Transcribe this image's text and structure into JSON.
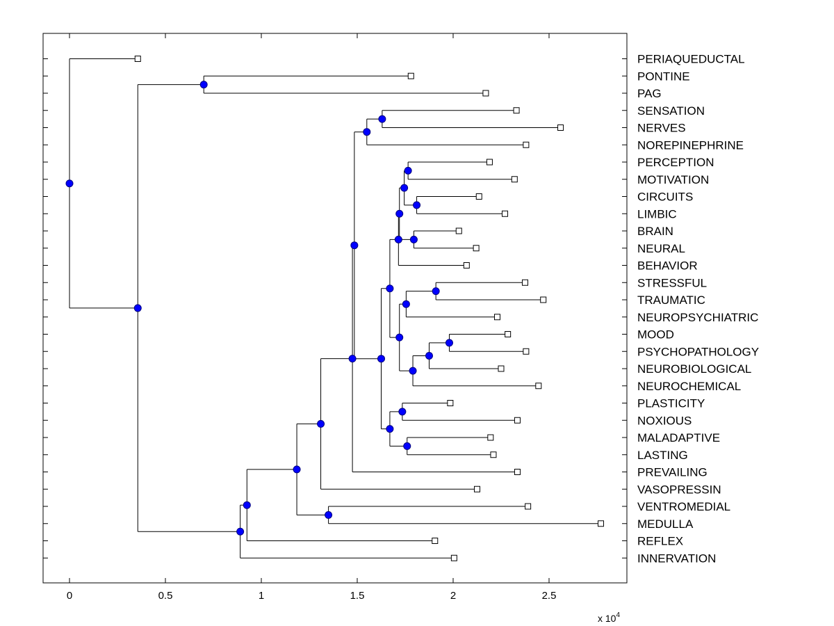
{
  "chart_data": {
    "type": "dendrogram",
    "title": "",
    "xlabel": "",
    "ylabel": "",
    "x_scale_label": "x 10",
    "x_scale_exponent": "4",
    "xlim": [
      -0.14,
      2.9
    ],
    "xticks": [
      {
        "value": 0,
        "label": "0"
      },
      {
        "value": 0.5,
        "label": "0.5"
      },
      {
        "value": 1,
        "label": "1"
      },
      {
        "value": 1.5,
        "label": "1.5"
      },
      {
        "value": 2,
        "label": "2"
      },
      {
        "value": 2.5,
        "label": "2.5"
      }
    ],
    "colors": {
      "node": "#0000ff",
      "node_edge": "#000080",
      "line": "#000000",
      "leaf_fill": "#ffffff"
    },
    "leaves": [
      {
        "id": "periaqueductal",
        "label": "PERIAQUEDUCTAL",
        "x": 0.356
      },
      {
        "id": "pontine",
        "label": "PONTINE",
        "x": 1.78
      },
      {
        "id": "pag",
        "label": "PAG",
        "x": 2.17
      },
      {
        "id": "sensation",
        "label": "SENSATION",
        "x": 2.33
      },
      {
        "id": "nerves",
        "label": "NERVES",
        "x": 2.56
      },
      {
        "id": "norepinephrine",
        "label": "NOREPINEPHRINE",
        "x": 2.38
      },
      {
        "id": "perception",
        "label": "PERCEPTION",
        "x": 2.19
      },
      {
        "id": "motivation",
        "label": "MOTIVATION",
        "x": 2.32
      },
      {
        "id": "circuits",
        "label": "CIRCUITS",
        "x": 2.135
      },
      {
        "id": "limbic",
        "label": "LIMBIC",
        "x": 2.27
      },
      {
        "id": "brain",
        "label": "BRAIN",
        "x": 2.03
      },
      {
        "id": "neural",
        "label": "NEURAL",
        "x": 2.12
      },
      {
        "id": "behavior",
        "label": "BEHAVIOR",
        "x": 2.07
      },
      {
        "id": "stressful",
        "label": "STRESSFUL",
        "x": 2.375
      },
      {
        "id": "traumatic",
        "label": "TRAUMATIC",
        "x": 2.47
      },
      {
        "id": "neuropsychiatric",
        "label": "NEUROPSYCHIATRIC",
        "x": 2.23
      },
      {
        "id": "mood",
        "label": "MOOD",
        "x": 2.285
      },
      {
        "id": "psychopathology",
        "label": "PSYCHOPATHOLOGY",
        "x": 2.38
      },
      {
        "id": "neurobiological",
        "label": "NEUROBIOLOGICAL",
        "x": 2.25
      },
      {
        "id": "neurochemical",
        "label": "NEUROCHEMICAL",
        "x": 2.445
      },
      {
        "id": "plasticity",
        "label": "PLASTICITY",
        "x": 1.985
      },
      {
        "id": "noxious",
        "label": "NOXIOUS",
        "x": 2.335
      },
      {
        "id": "maladaptive",
        "label": "MALADAPTIVE",
        "x": 2.195
      },
      {
        "id": "lasting",
        "label": "LASTING",
        "x": 2.21
      },
      {
        "id": "prevailing",
        "label": "PREVAILING",
        "x": 2.335
      },
      {
        "id": "vasopressin",
        "label": "VASOPRESSIN",
        "x": 2.125
      },
      {
        "id": "ventromedial",
        "label": "VENTROMEDIAL",
        "x": 2.39
      },
      {
        "id": "medulla",
        "label": "MEDULLA",
        "x": 2.77
      },
      {
        "id": "reflex",
        "label": "REFLEX",
        "x": 1.905
      },
      {
        "id": "innervation",
        "label": "INNERVATION",
        "x": 2.005
      }
    ],
    "nodes": [
      {
        "id": "n_pontine_pag",
        "x": 0.7,
        "children": [
          "pontine",
          "pag"
        ]
      },
      {
        "id": "n_sens_nerves",
        "x": 1.63,
        "children": [
          "sensation",
          "nerves"
        ]
      },
      {
        "id": "n_sens_norep",
        "x": 1.55,
        "children": [
          "n_sens_nerves",
          "norepinephrine"
        ]
      },
      {
        "id": "n_perc_motiv",
        "x": 1.765,
        "children": [
          "perception",
          "motivation"
        ]
      },
      {
        "id": "n_circ_limbic",
        "x": 1.81,
        "children": [
          "circuits",
          "limbic"
        ]
      },
      {
        "id": "n_motiv_circ",
        "x": 1.745,
        "children": [
          "n_perc_motiv",
          "n_circ_limbic"
        ]
      },
      {
        "id": "n_brain_neural",
        "x": 1.795,
        "children": [
          "brain",
          "neural"
        ]
      },
      {
        "id": "n_limbic_grp",
        "x": 1.72,
        "children": [
          "n_motiv_circ",
          "n_brain_neural"
        ]
      },
      {
        "id": "n_behavior_grp",
        "x": 1.715,
        "children": [
          "n_limbic_grp",
          "behavior"
        ]
      },
      {
        "id": "n_stress_trauma",
        "x": 1.91,
        "children": [
          "stressful",
          "traumatic"
        ]
      },
      {
        "id": "n_trauma_np",
        "x": 1.755,
        "children": [
          "n_stress_trauma",
          "neuropsychiatric"
        ]
      },
      {
        "id": "n_mood_psych",
        "x": 1.98,
        "children": [
          "mood",
          "psychopathology"
        ]
      },
      {
        "id": "n_mood_nb",
        "x": 1.875,
        "children": [
          "n_mood_psych",
          "neurobiological"
        ]
      },
      {
        "id": "n_mood_nc",
        "x": 1.79,
        "children": [
          "n_mood_nb",
          "neurochemical"
        ]
      },
      {
        "id": "n_np_mood",
        "x": 1.72,
        "children": [
          "n_trauma_np",
          "n_mood_nc"
        ]
      },
      {
        "id": "n_behav_np",
        "x": 1.67,
        "children": [
          "n_behavior_grp",
          "n_np_mood"
        ]
      },
      {
        "id": "n_plast_nox",
        "x": 1.735,
        "children": [
          "plasticity",
          "noxious"
        ]
      },
      {
        "id": "n_malad_last",
        "x": 1.76,
        "children": [
          "maladaptive",
          "lasting"
        ]
      },
      {
        "id": "n_nox_malad",
        "x": 1.67,
        "children": [
          "n_plast_nox",
          "n_malad_last"
        ]
      },
      {
        "id": "n_core",
        "x": 1.625,
        "children": [
          "n_behav_np",
          "n_nox_malad"
        ]
      },
      {
        "id": "n_sens_core",
        "x": 1.485,
        "children": [
          "n_sens_norep",
          "n_core"
        ]
      },
      {
        "id": "n_prevailing",
        "x": 1.475,
        "children": [
          "n_sens_core",
          "prevailing"
        ]
      },
      {
        "id": "n_vasopressin",
        "x": 1.31,
        "children": [
          "n_prevailing",
          "vasopressin"
        ]
      },
      {
        "id": "n_ventro_medulla",
        "x": 1.35,
        "children": [
          "ventromedial",
          "medulla"
        ]
      },
      {
        "id": "n_vaso_ventro",
        "x": 1.185,
        "children": [
          "n_vasopressin",
          "n_ventro_medulla"
        ]
      },
      {
        "id": "n_reflex",
        "x": 0.925,
        "children": [
          "n_vaso_ventro",
          "reflex"
        ]
      },
      {
        "id": "n_innervation",
        "x": 0.89,
        "children": [
          "n_reflex",
          "innervation"
        ]
      },
      {
        "id": "n_pag_big",
        "x": 0.356,
        "children": [
          "n_pontine_pag",
          "n_innervation"
        ]
      },
      {
        "id": "n_root",
        "x": 0.0,
        "children": [
          "periaqueductal",
          "n_pag_big"
        ]
      }
    ]
  }
}
